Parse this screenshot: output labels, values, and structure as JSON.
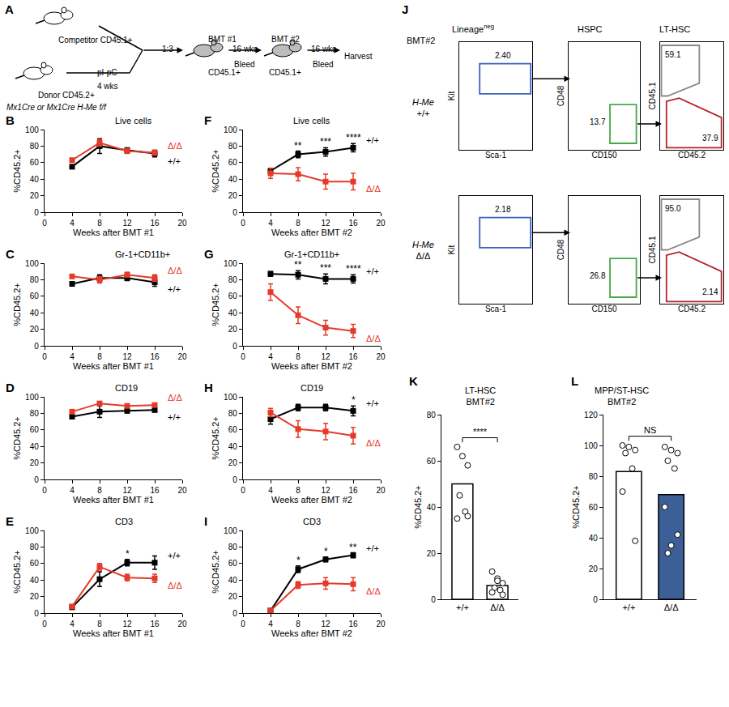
{
  "diagram": {
    "panel": "A",
    "competitor": "Competitor CD45.1+",
    "donor": "Donor CD45.2+",
    "donor_genotype": "Mx1Cre or Mx1Cre H-Me f/f",
    "treatment": "pI-pC",
    "treatment_time": "4 wks",
    "ratio": "1:3",
    "steps": [
      {
        "label": "BMT #1",
        "recipient": "CD45.1+",
        "interval": "16 wks",
        "action": "Bleed"
      },
      {
        "label": "BMT #2",
        "recipient": "CD45.1+",
        "interval": "16 wks",
        "action": "Bleed"
      }
    ],
    "end": "Harvest"
  },
  "chart_data": [
    {
      "panel": "B",
      "type": "line",
      "title": "Live cells",
      "x_label": "Weeks after BMT #1",
      "y_label": "%CD45.2+",
      "x": [
        4,
        8,
        12,
        16
      ],
      "xlim": [
        0,
        20
      ],
      "xticks": [
        0,
        4,
        8,
        12,
        16,
        20
      ],
      "ylim": [
        0,
        100
      ],
      "yticks": [
        0,
        20,
        40,
        60,
        80,
        100
      ],
      "series": [
        {
          "name": "+/+",
          "color": "#000000",
          "marker": "square",
          "values": [
            55,
            80,
            75,
            71
          ],
          "error": [
            2,
            9,
            3,
            4
          ]
        },
        {
          "name": "Δ/Δ",
          "color": "#e53a2a",
          "marker": "square",
          "values": [
            63,
            84,
            74,
            72
          ],
          "error": [
            2,
            4,
            3,
            3
          ]
        }
      ],
      "annotations": []
    },
    {
      "panel": "C",
      "type": "line",
      "title": "Gr-1+CD11b+",
      "x_label": "Weeks after BMT #1",
      "y_label": "%CD45.2+",
      "x": [
        4,
        8,
        12,
        16
      ],
      "xlim": [
        0,
        20
      ],
      "xticks": [
        0,
        4,
        8,
        12,
        16,
        20
      ],
      "ylim": [
        0,
        100
      ],
      "yticks": [
        0,
        20,
        40,
        60,
        80,
        100
      ],
      "series": [
        {
          "name": "+/+",
          "color": "#000000",
          "marker": "square",
          "values": [
            75,
            82,
            82,
            77
          ],
          "error": [
            2,
            4,
            3,
            5
          ]
        },
        {
          "name": "Δ/Δ",
          "color": "#e53a2a",
          "marker": "square",
          "values": [
            84,
            80,
            86,
            82
          ],
          "error": [
            2,
            4,
            3,
            4
          ]
        }
      ],
      "annotations": []
    },
    {
      "panel": "D",
      "type": "line",
      "title": "CD19",
      "x_label": "Weeks after BMT #1",
      "y_label": "%CD45.2+",
      "x": [
        4,
        8,
        12,
        16
      ],
      "xlim": [
        0,
        20
      ],
      "xticks": [
        0,
        4,
        8,
        12,
        16,
        20
      ],
      "ylim": [
        0,
        100
      ],
      "yticks": [
        0,
        20,
        40,
        60,
        80,
        100
      ],
      "series": [
        {
          "name": "+/+",
          "color": "#000000",
          "marker": "square",
          "values": [
            76,
            82,
            83,
            84
          ],
          "error": [
            2,
            7,
            2,
            2
          ]
        },
        {
          "name": "Δ/Δ",
          "color": "#e53a2a",
          "marker": "square",
          "values": [
            82,
            92,
            89,
            90
          ],
          "error": [
            2,
            2,
            2,
            2
          ]
        }
      ],
      "annotations": []
    },
    {
      "panel": "E",
      "type": "line",
      "title": "CD3",
      "x_label": "Weeks after BMT #1",
      "y_label": "%CD45.2+",
      "x": [
        4,
        8,
        12,
        16
      ],
      "xlim": [
        0,
        20
      ],
      "xticks": [
        0,
        4,
        8,
        12,
        16,
        20
      ],
      "ylim": [
        0,
        100
      ],
      "yticks": [
        0,
        20,
        40,
        60,
        80,
        100
      ],
      "series": [
        {
          "name": "+/+",
          "color": "#000000",
          "marker": "square",
          "values": [
            7,
            41,
            61,
            61
          ],
          "error": [
            1,
            9,
            4,
            8
          ]
        },
        {
          "name": "Δ/Δ",
          "color": "#e53a2a",
          "marker": "square",
          "values": [
            8,
            56,
            43,
            42
          ],
          "error": [
            1,
            4,
            4,
            5
          ]
        }
      ],
      "annotations": [
        {
          "x": 12,
          "text": "*"
        }
      ]
    },
    {
      "panel": "F",
      "type": "line",
      "title": "Live cells",
      "x_label": "Weeks after BMT #2",
      "y_label": "%CD45.2+",
      "x": [
        4,
        8,
        12,
        16
      ],
      "xlim": [
        0,
        20
      ],
      "xticks": [
        0,
        4,
        8,
        12,
        16,
        20
      ],
      "ylim": [
        0,
        100
      ],
      "yticks": [
        0,
        20,
        40,
        60,
        80,
        100
      ],
      "series": [
        {
          "name": "+/+",
          "color": "#000000",
          "marker": "square",
          "values": [
            50,
            70,
            73,
            78
          ],
          "error": [
            3,
            4,
            5,
            5
          ]
        },
        {
          "name": "Δ/Δ",
          "color": "#e53a2a",
          "marker": "square",
          "values": [
            47,
            46,
            37,
            37
          ],
          "error": [
            6,
            8,
            9,
            10
          ]
        }
      ],
      "annotations": [
        {
          "x": 8,
          "text": "**"
        },
        {
          "x": 12,
          "text": "***"
        },
        {
          "x": 16,
          "text": "****"
        }
      ]
    },
    {
      "panel": "G",
      "type": "line",
      "title": "Gr-1+CD11b+",
      "x_label": "Weeks after BMT #2",
      "y_label": "%CD45.2+",
      "x": [
        4,
        8,
        12,
        16
      ],
      "xlim": [
        0,
        20
      ],
      "xticks": [
        0,
        4,
        8,
        12,
        16,
        20
      ],
      "ylim": [
        0,
        100
      ],
      "yticks": [
        0,
        20,
        40,
        60,
        80,
        100
      ],
      "series": [
        {
          "name": "+/+",
          "color": "#000000",
          "marker": "square",
          "values": [
            87,
            86,
            81,
            81
          ],
          "error": [
            3,
            5,
            6,
            5
          ]
        },
        {
          "name": "Δ/Δ",
          "color": "#e53a2a",
          "marker": "square",
          "values": [
            65,
            37,
            22,
            18
          ],
          "error": [
            10,
            10,
            9,
            8
          ]
        }
      ],
      "annotations": [
        {
          "x": 8,
          "text": "**"
        },
        {
          "x": 12,
          "text": "***"
        },
        {
          "x": 16,
          "text": "****"
        }
      ]
    },
    {
      "panel": "H",
      "type": "line",
      "title": "CD19",
      "x_label": "Weeks after BMT #2",
      "y_label": "%CD45.2+",
      "x": [
        4,
        8,
        12,
        16
      ],
      "xlim": [
        0,
        20
      ],
      "xticks": [
        0,
        4,
        8,
        12,
        16,
        20
      ],
      "ylim": [
        0,
        100
      ],
      "yticks": [
        0,
        20,
        40,
        60,
        80,
        100
      ],
      "series": [
        {
          "name": "+/+",
          "color": "#000000",
          "marker": "square",
          "values": [
            73,
            87,
            87,
            83
          ],
          "error": [
            6,
            4,
            4,
            6
          ]
        },
        {
          "name": "Δ/Δ",
          "color": "#e53a2a",
          "marker": "square",
          "values": [
            81,
            61,
            58,
            53
          ],
          "error": [
            5,
            10,
            10,
            10
          ]
        }
      ],
      "annotations": [
        {
          "x": 16,
          "text": "*"
        }
      ]
    },
    {
      "panel": "I",
      "type": "line",
      "title": "CD3",
      "x_label": "Weeks after BMT #2",
      "y_label": "%CD45.2+",
      "x": [
        4,
        8,
        12,
        16
      ],
      "xlim": [
        0,
        20
      ],
      "xticks": [
        0,
        4,
        8,
        12,
        16,
        20
      ],
      "ylim": [
        0,
        100
      ],
      "yticks": [
        0,
        20,
        40,
        60,
        80,
        100
      ],
      "series": [
        {
          "name": "+/+",
          "color": "#000000",
          "marker": "square",
          "values": [
            3,
            53,
            65,
            70
          ],
          "error": [
            1,
            4,
            3,
            3
          ]
        },
        {
          "name": "Δ/Δ",
          "color": "#e53a2a",
          "marker": "square",
          "values": [
            3,
            34,
            36,
            35
          ],
          "error": [
            1,
            4,
            7,
            8
          ]
        }
      ],
      "annotations": [
        {
          "x": 8,
          "text": "*"
        },
        {
          "x": 12,
          "text": "*"
        },
        {
          "x": 16,
          "text": "**"
        }
      ]
    },
    {
      "panel": "K",
      "type": "bar",
      "title": [
        "LT-HSC",
        "BMT#2"
      ],
      "y_label": "%CD45.2+",
      "categories": [
        "+/+",
        "Δ/Δ"
      ],
      "values": [
        50,
        6
      ],
      "colors": [
        "#ffffff",
        "#ffffff"
      ],
      "points": [
        [
          66,
          62,
          58,
          45,
          38,
          35,
          36
        ],
        [
          12,
          9,
          7,
          5,
          4,
          3,
          2,
          8
        ]
      ],
      "ylim": [
        0,
        80
      ],
      "yticks": [
        0,
        20,
        40,
        60,
        80
      ],
      "annotations": [
        {
          "text": "****"
        }
      ]
    },
    {
      "panel": "L",
      "type": "bar",
      "title": [
        "MPP/ST-HSC",
        "BMT#2"
      ],
      "y_label": "%CD45.2+",
      "categories": [
        "+/+",
        "Δ/Δ"
      ],
      "values": [
        83,
        68
      ],
      "colors": [
        "#ffffff",
        "#3b5f96"
      ],
      "points": [
        [
          100,
          99,
          97,
          95,
          85,
          70,
          38
        ],
        [
          99,
          97,
          95,
          90,
          85,
          60,
          42,
          35,
          30
        ]
      ],
      "ylim": [
        0,
        120
      ],
      "yticks": [
        0,
        20,
        40,
        60,
        80,
        100,
        120
      ],
      "annotations": [
        {
          "text": "NS"
        }
      ]
    }
  ],
  "flow_cytometry": {
    "panel": "J",
    "title": "BMT#2",
    "tick_labels": false,
    "plots": [
      {
        "title": "Lineage",
        "title_superscript": "neg",
        "x_label": "Sca-1",
        "y_label": "Kit",
        "gate_colors": [
          "#3b5fc0"
        ]
      },
      {
        "title": "HSPC",
        "x_label": "CD150",
        "y_label": "CD48",
        "gate_colors": [
          "#45a844"
        ]
      },
      {
        "title": "LT-HSC",
        "x_label": "CD45.2",
        "y_label": "CD45.1",
        "gate_colors": [
          "#8a8a8a",
          "#b8232a"
        ]
      }
    ],
    "rows": [
      {
        "label": "H-Me",
        "label_superscript": "+/+",
        "gates": [
          [
            {
              "value": 2.4,
              "label": "2.40"
            }
          ],
          [
            13.7
          ],
          [
            59.1,
            37.9
          ]
        ]
      },
      {
        "label": "H-Me",
        "label_superscript": "Δ/Δ",
        "gates": [
          [
            2.18
          ],
          [
            26.8
          ],
          [
            {
              "value": 95,
              "label": "95.0"
            },
            2.14
          ]
        ]
      }
    ]
  }
}
